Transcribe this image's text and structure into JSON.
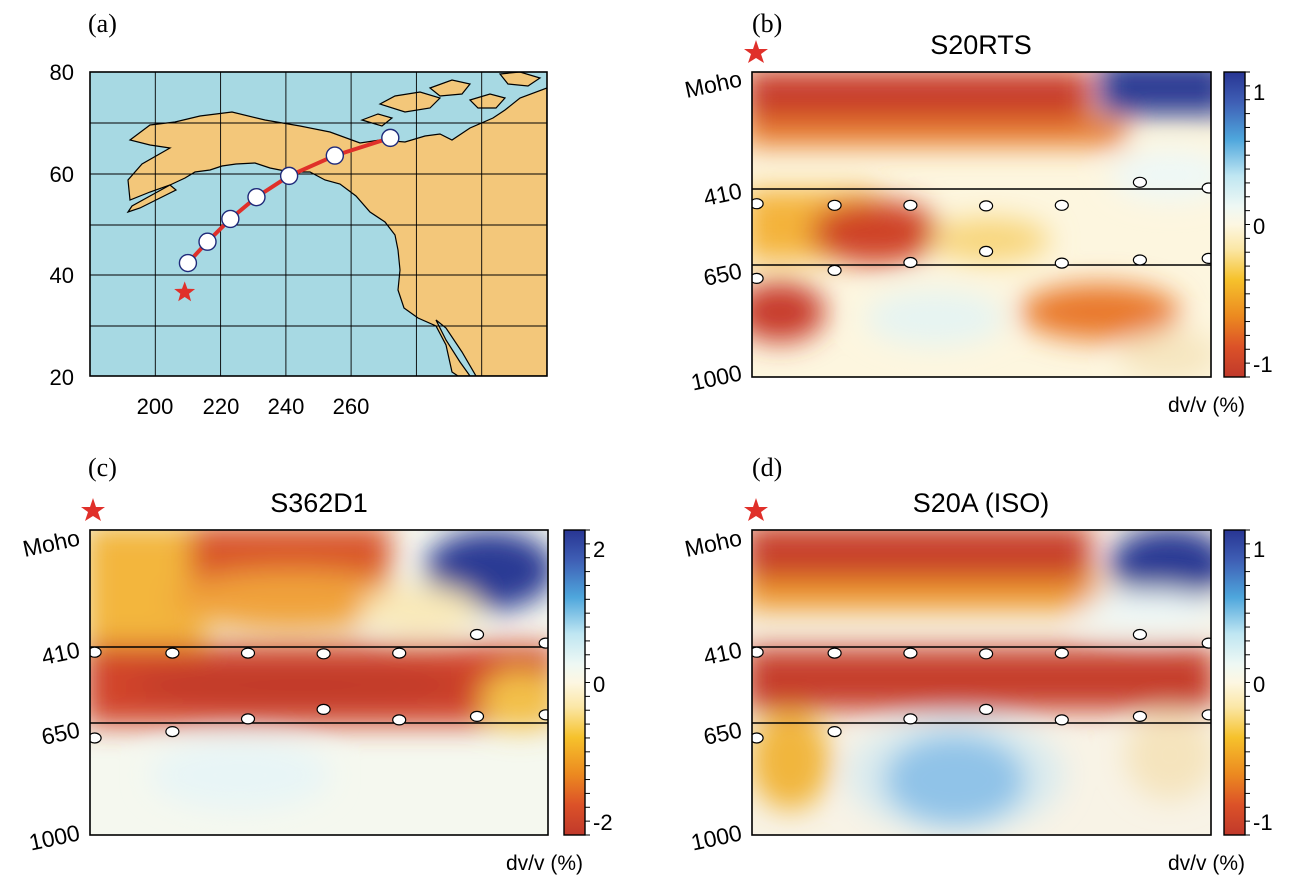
{
  "colors": {
    "ocean": "#a7d9e3",
    "land": "#f3c77a",
    "path": "#e0302a",
    "star": "#e0302a",
    "scale_negative": "#c0392b",
    "scale_zero": "#fdf7e2",
    "scale_positive": "#283593"
  },
  "chart_data": [
    {
      "type": "map",
      "panel_label": "(a)",
      "x_ticks": [
        "200",
        "220",
        "240",
        "260"
      ],
      "y_ticks": [
        "80",
        "60",
        "40",
        "20"
      ],
      "xlim": [
        190,
        260
      ],
      "ylim": [
        20,
        80
      ],
      "gridlines_lon": [
        190,
        200,
        210,
        220,
        230,
        240,
        250,
        260
      ],
      "gridlines_lat": [
        20,
        30,
        40,
        50,
        60,
        70,
        80
      ],
      "event": {
        "lon": 204.5,
        "lat": 36.5
      },
      "stations": [
        {
          "lon": 205,
          "lat": 42.3
        },
        {
          "lon": 208,
          "lat": 46.5
        },
        {
          "lon": 211.5,
          "lat": 51
        },
        {
          "lon": 215.5,
          "lat": 55.3
        },
        {
          "lon": 220.5,
          "lat": 59.5
        },
        {
          "lon": 227.5,
          "lat": 63.5
        },
        {
          "lon": 236,
          "lat": 67
        }
      ]
    },
    {
      "type": "heatmap",
      "panel_label": "(b)",
      "title": "S20RTS",
      "depth_labels": [
        "Moho",
        "410",
        "650",
        "1000"
      ],
      "colorbar_ticks": [
        "1",
        "0",
        "-1"
      ],
      "colorbar_range": [
        -1.1,
        1.1
      ],
      "colorbar_label": "dv/v (%)",
      "points_410": [
        {
          "x": 0.01,
          "d": 455
        },
        {
          "x": 0.18,
          "d": 460
        },
        {
          "x": 0.345,
          "d": 460
        },
        {
          "x": 0.51,
          "d": 462
        },
        {
          "x": 0.675,
          "d": 460
        },
        {
          "x": 0.845,
          "d": 385
        },
        {
          "x": 0.995,
          "d": 405
        }
      ],
      "points_650": [
        {
          "x": 0.01,
          "d": 690
        },
        {
          "x": 0.18,
          "d": 665
        },
        {
          "x": 0.345,
          "d": 640
        },
        {
          "x": 0.51,
          "d": 605
        },
        {
          "x": 0.675,
          "d": 642
        },
        {
          "x": 0.845,
          "d": 632
        },
        {
          "x": 0.995,
          "d": 627
        }
      ]
    },
    {
      "type": "heatmap",
      "panel_label": "(c)",
      "title": "S362D1",
      "depth_labels": [
        "Moho",
        "410",
        "650",
        "1000"
      ],
      "colorbar_ticks": [
        "2",
        "0",
        "-2"
      ],
      "colorbar_range": [
        -2.2,
        2.2
      ],
      "colorbar_label": "dv/v (%)",
      "points_410": [
        {
          "x": 0.01,
          "d": 425
        },
        {
          "x": 0.18,
          "d": 428
        },
        {
          "x": 0.345,
          "d": 428
        },
        {
          "x": 0.51,
          "d": 430
        },
        {
          "x": 0.675,
          "d": 428
        },
        {
          "x": 0.845,
          "d": 365
        },
        {
          "x": 0.995,
          "d": 395
        }
      ],
      "points_650": [
        {
          "x": 0.01,
          "d": 695
        },
        {
          "x": 0.18,
          "d": 675
        },
        {
          "x": 0.345,
          "d": 635
        },
        {
          "x": 0.51,
          "d": 605
        },
        {
          "x": 0.675,
          "d": 638
        },
        {
          "x": 0.845,
          "d": 627
        },
        {
          "x": 0.995,
          "d": 622
        }
      ]
    },
    {
      "type": "heatmap",
      "panel_label": "(d)",
      "title": "S20A (ISO)",
      "depth_labels": [
        "Moho",
        "410",
        "650",
        "1000"
      ],
      "colorbar_ticks": [
        "1",
        "0",
        "-1"
      ],
      "colorbar_range": [
        -1.1,
        1.1
      ],
      "colorbar_label": "dv/v (%)",
      "points_410": [
        {
          "x": 0.01,
          "d": 425
        },
        {
          "x": 0.18,
          "d": 428
        },
        {
          "x": 0.345,
          "d": 428
        },
        {
          "x": 0.51,
          "d": 430
        },
        {
          "x": 0.675,
          "d": 428
        },
        {
          "x": 0.845,
          "d": 365
        },
        {
          "x": 0.995,
          "d": 395
        }
      ],
      "points_650": [
        {
          "x": 0.01,
          "d": 695
        },
        {
          "x": 0.18,
          "d": 675
        },
        {
          "x": 0.345,
          "d": 635
        },
        {
          "x": 0.51,
          "d": 605
        },
        {
          "x": 0.675,
          "d": 638
        },
        {
          "x": 0.845,
          "d": 627
        },
        {
          "x": 0.995,
          "d": 622
        }
      ]
    }
  ]
}
